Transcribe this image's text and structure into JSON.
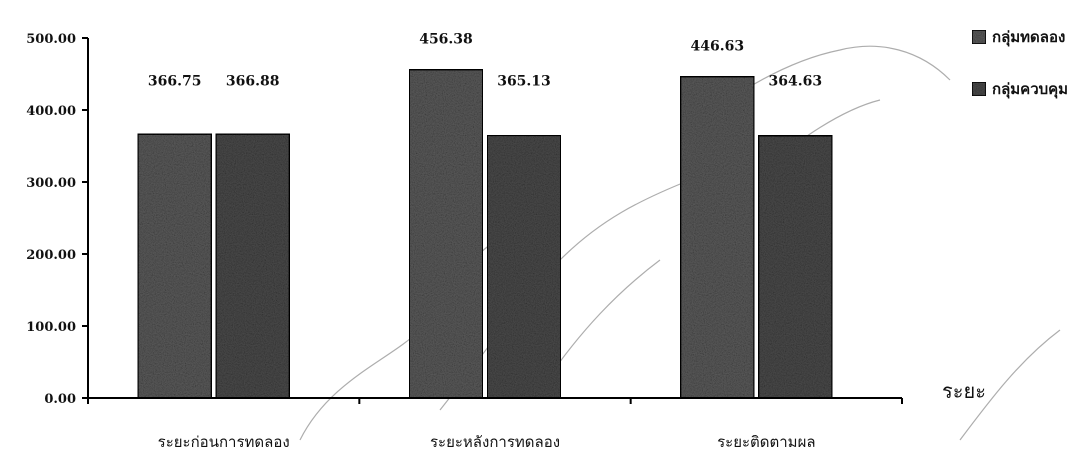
{
  "chart_data": {
    "type": "bar",
    "title": "",
    "xlabel": "ระยะ",
    "ylabel": "",
    "categories": [
      "ระยะก่อนการทดลอง",
      "ระยะหลังการทดลอง",
      "ระยะติดตามผล"
    ],
    "series": [
      {
        "name": "กลุ่มทดลอง",
        "values": [
          366.75,
          456.38,
          446.63
        ],
        "color": "#5a5a5a"
      },
      {
        "name": "กลุ่มควบคุม",
        "values": [
          366.88,
          365.13,
          364.63
        ],
        "color": "#4a4a4a"
      }
    ],
    "ylim": [
      0,
      500
    ],
    "yticks": [
      "0.00",
      "100.00",
      "200.00",
      "300.00",
      "400.00",
      "500.00"
    ],
    "data_labels": [
      "366.75",
      "366.88",
      "456.38",
      "365.13",
      "446.63",
      "364.63"
    ],
    "grid": false,
    "legend_position": "top-right"
  }
}
